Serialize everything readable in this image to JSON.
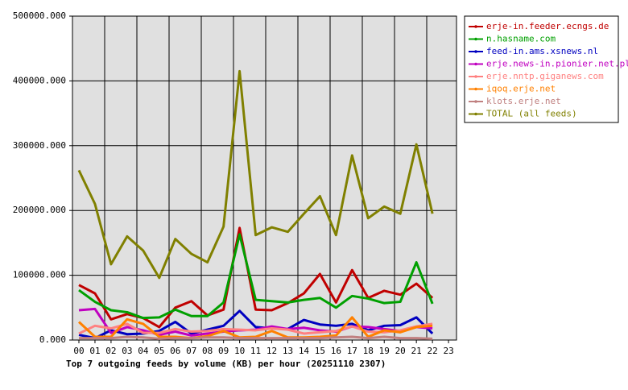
{
  "chart_data": {
    "type": "line",
    "title": "Top 7 outgoing feeds by volume (KB) per hour (20251110 2307)",
    "categories": [
      "00",
      "01",
      "02",
      "03",
      "04",
      "05",
      "06",
      "07",
      "08",
      "09",
      "10",
      "11",
      "12",
      "13",
      "14",
      "15",
      "16",
      "17",
      "18",
      "19",
      "20",
      "21",
      "22",
      "23"
    ],
    "ylim": [
      0,
      500000
    ],
    "yticks": [
      {
        "value": 0,
        "label": "0.000"
      },
      {
        "value": 100000,
        "label": "100000.000"
      },
      {
        "value": 200000,
        "label": "200000.000"
      },
      {
        "value": 300000,
        "label": "300000.000"
      },
      {
        "value": 400000,
        "label": "400000.000"
      },
      {
        "value": 500000,
        "label": "500000.000"
      }
    ],
    "grid": true,
    "legend": "right",
    "series": [
      {
        "name": "erje-in.feeder.ecngs.de",
        "color": "#c00000",
        "values": [
          85000,
          72000,
          32000,
          40000,
          34000,
          20000,
          50000,
          60000,
          38000,
          47000,
          173000,
          47000,
          46000,
          57000,
          72000,
          102000,
          58000,
          108000,
          65000,
          76000,
          70000,
          87000,
          65000,
          null
        ]
      },
      {
        "name": "n.hasname.com",
        "color": "#00a000",
        "values": [
          77000,
          59000,
          46000,
          43000,
          34000,
          35000,
          47000,
          37000,
          37000,
          58000,
          163000,
          62000,
          60000,
          58000,
          62000,
          65000,
          50000,
          68000,
          64000,
          57000,
          59000,
          120000,
          56000,
          null
        ]
      },
      {
        "name": "feed-in.ams.xsnews.nl",
        "color": "#0000c0",
        "values": [
          8000,
          3000,
          15000,
          9000,
          10000,
          14000,
          28000,
          10000,
          16000,
          22000,
          45000,
          20000,
          18000,
          17000,
          31000,
          24000,
          22000,
          25000,
          15000,
          22000,
          23000,
          35000,
          10000,
          null
        ]
      },
      {
        "name": "erje.news-in.pionier.net.pl",
        "color": "#c000c0",
        "values": [
          46000,
          48000,
          11000,
          20000,
          15000,
          8000,
          13000,
          7000,
          10000,
          13000,
          15000,
          16000,
          21000,
          17000,
          19000,
          15000,
          13000,
          21000,
          20000,
          17000,
          14000,
          20000,
          18000,
          null
        ]
      },
      {
        "name": "erje.nntp.giganews.com",
        "color": "#ff8080",
        "values": [
          10000,
          22000,
          18000,
          25000,
          11000,
          11000,
          17000,
          13000,
          14000,
          17000,
          16000,
          15000,
          18000,
          16000,
          10000,
          12000,
          14000,
          21000,
          13000,
          12000,
          15000,
          21000,
          25000,
          null
        ]
      },
      {
        "name": "iqoq.erje.net",
        "color": "#ff8000",
        "values": [
          28000,
          5000,
          5000,
          32000,
          25000,
          5000,
          5000,
          3000,
          6000,
          14000,
          4000,
          5000,
          14000,
          4000,
          4000,
          5000,
          7000,
          35000,
          5000,
          15000,
          12000,
          20000,
          22000,
          null
        ]
      },
      {
        "name": "klots.erje.net",
        "color": "#c08080",
        "values": [
          3000,
          3000,
          3000,
          5000,
          4000,
          2000,
          3000,
          3000,
          4000,
          4000,
          3000,
          3000,
          3000,
          3000,
          3000,
          3000,
          4000,
          5000,
          3000,
          5000,
          3000,
          3000,
          2000,
          null
        ]
      },
      {
        "name": "TOTAL (all feeds)",
        "color": "#808000",
        "values": [
          262000,
          210000,
          117000,
          160000,
          138000,
          96000,
          156000,
          133000,
          120000,
          175000,
          415000,
          162000,
          174000,
          167000,
          195000,
          222000,
          162000,
          285000,
          188000,
          206000,
          195000,
          302000,
          195000,
          null
        ]
      }
    ]
  }
}
